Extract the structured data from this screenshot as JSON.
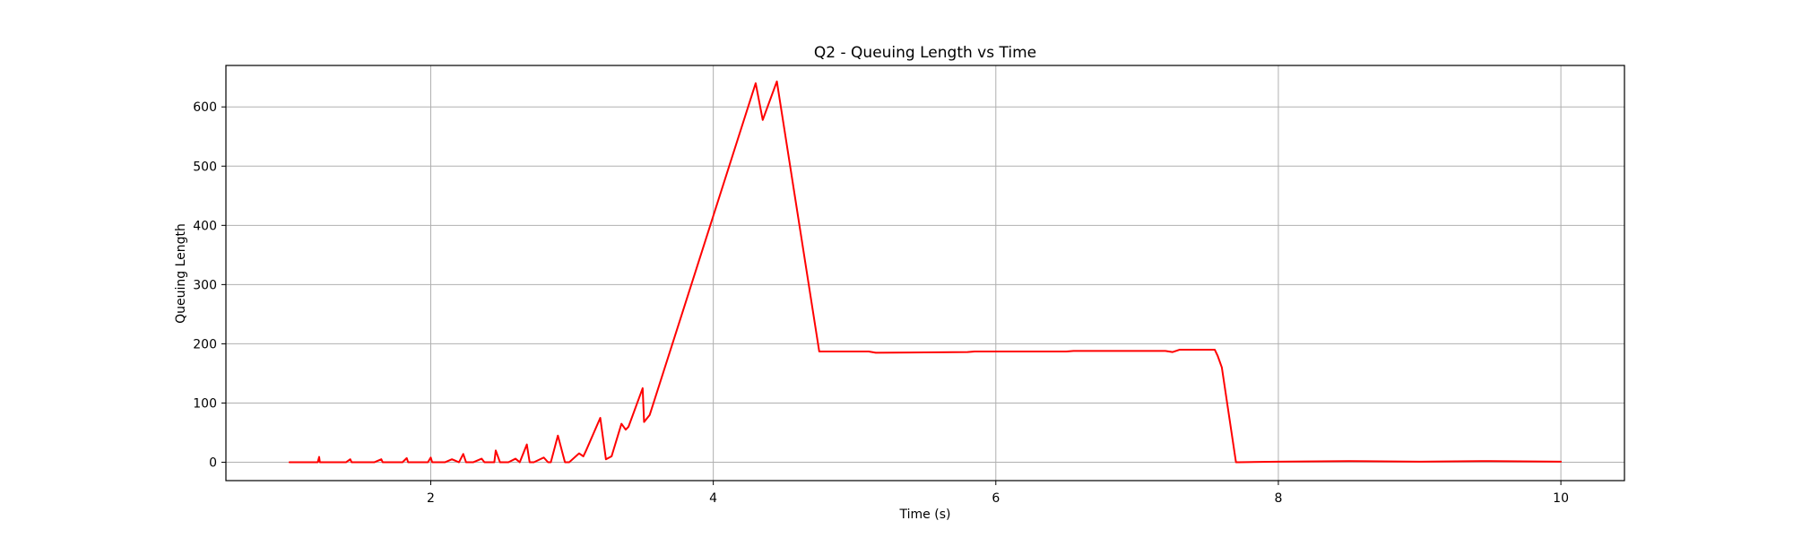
{
  "chart_data": {
    "type": "line",
    "title": "Q2 - Queuing Length vs Time",
    "xlabel": "Time (s)",
    "ylabel": "Queuing Length",
    "xlim": [
      0.55,
      10.45
    ],
    "ylim": [
      -31,
      670
    ],
    "xticks": [
      2,
      4,
      6,
      8,
      10
    ],
    "xtick_labels": [
      "2",
      "4",
      "6",
      "8",
      "10"
    ],
    "yticks": [
      0,
      100,
      200,
      300,
      400,
      500,
      600
    ],
    "ytick_labels": [
      "0",
      "100",
      "200",
      "300",
      "400",
      "500",
      "600"
    ],
    "grid": true,
    "legend": "none",
    "series": [
      {
        "color": "#ff0000",
        "x": [
          1.0,
          1.2,
          1.21,
          1.215,
          1.23,
          1.4,
          1.43,
          1.44,
          1.6,
          1.65,
          1.66,
          1.8,
          1.83,
          1.84,
          1.98,
          2.0,
          2.01,
          2.1,
          2.15,
          2.2,
          2.23,
          2.25,
          2.3,
          2.36,
          2.38,
          2.45,
          2.46,
          2.49,
          2.55,
          2.6,
          2.63,
          2.68,
          2.7,
          2.73,
          2.8,
          2.83,
          2.85,
          2.9,
          2.95,
          2.98,
          3.05,
          3.08,
          3.1,
          3.2,
          3.24,
          3.28,
          3.35,
          3.38,
          3.4,
          3.5,
          3.51,
          3.55,
          4.3,
          4.35,
          4.45,
          4.75,
          4.76,
          5.1,
          5.15,
          5.8,
          5.85,
          6.5,
          6.55,
          7.2,
          7.25,
          7.3,
          7.55,
          7.57,
          7.6,
          7.7,
          7.72,
          8.0,
          8.5,
          9.0,
          9.5,
          10.0
        ],
        "y": [
          0,
          0,
          9,
          0,
          0,
          0,
          5,
          0,
          0,
          5,
          0,
          0,
          7,
          0,
          0,
          8,
          0,
          0,
          5,
          0,
          14,
          0,
          0,
          6,
          0,
          0,
          20,
          0,
          0,
          6,
          0,
          30,
          0,
          0,
          8,
          0,
          0,
          45,
          0,
          0,
          15,
          10,
          20,
          75,
          5,
          10,
          65,
          55,
          60,
          125,
          68,
          80,
          640,
          578,
          643,
          187,
          187,
          187,
          185,
          186,
          187,
          187,
          188,
          188,
          186,
          190,
          190,
          180,
          160,
          0,
          0,
          1,
          2,
          1,
          2,
          1
        ]
      }
    ]
  }
}
